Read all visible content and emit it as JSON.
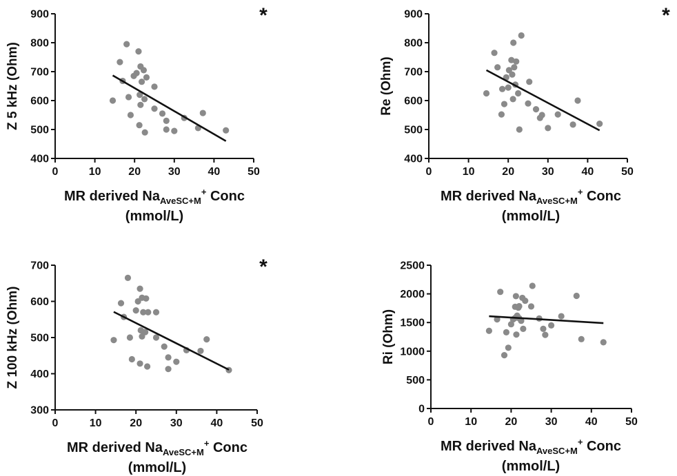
{
  "chart_data": [
    {
      "type": "scatter",
      "ylabel": "Z 5 kHz (Ohm)",
      "xlabel": {
        "prefix": "MR derived Na",
        "subscript": "AveSC+M",
        "superscript": "+",
        "suffix": " Conc",
        "line2": "(mmol/L)"
      },
      "xlim": [
        0,
        50
      ],
      "xticks": [
        0,
        10,
        20,
        30,
        40,
        50
      ],
      "ylim": [
        400,
        900
      ],
      "yticks": [
        400,
        500,
        600,
        700,
        800,
        900
      ],
      "significance": "*",
      "points": [
        [
          14.5,
          600
        ],
        [
          16.3,
          733
        ],
        [
          17,
          668
        ],
        [
          18,
          795
        ],
        [
          18.5,
          612
        ],
        [
          19,
          550
        ],
        [
          19.8,
          685
        ],
        [
          20.5,
          695
        ],
        [
          21,
          770
        ],
        [
          21.2,
          515
        ],
        [
          21.3,
          620
        ],
        [
          21.5,
          718
        ],
        [
          21.5,
          585
        ],
        [
          21.8,
          665
        ],
        [
          22.3,
          705
        ],
        [
          22.5,
          605
        ],
        [
          22.6,
          490
        ],
        [
          23,
          680
        ],
        [
          25,
          648
        ],
        [
          25,
          572
        ],
        [
          27,
          555
        ],
        [
          28,
          530
        ],
        [
          28,
          500
        ],
        [
          30,
          495
        ],
        [
          32.5,
          540
        ],
        [
          36,
          505
        ],
        [
          37.2,
          557
        ],
        [
          43,
          497
        ]
      ],
      "fit": {
        "x": [
          14.5,
          43
        ],
        "y": [
          687,
          460
        ]
      }
    },
    {
      "type": "scatter",
      "ylabel": "Re (Ohm)",
      "xlabel": {
        "prefix": "MR derived Na",
        "subscript": "AveSC+M",
        "superscript": "+",
        "suffix": " Conc",
        "line2": "(mmol/L)"
      },
      "xlim": [
        0,
        50
      ],
      "xticks": [
        0,
        10,
        20,
        30,
        40,
        50
      ],
      "ylim": [
        400,
        900
      ],
      "yticks": [
        400,
        500,
        600,
        700,
        800,
        900
      ],
      "significance": "*",
      "points": [
        [
          14.5,
          625
        ],
        [
          16.5,
          765
        ],
        [
          17.3,
          715
        ],
        [
          18.3,
          552
        ],
        [
          18.5,
          640
        ],
        [
          19,
          588
        ],
        [
          19.5,
          680
        ],
        [
          20,
          645
        ],
        [
          20.2,
          705
        ],
        [
          20.8,
          740
        ],
        [
          21,
          690
        ],
        [
          21.2,
          605
        ],
        [
          21.3,
          800
        ],
        [
          21.5,
          715
        ],
        [
          21.8,
          655
        ],
        [
          22,
          735
        ],
        [
          22.5,
          625
        ],
        [
          22.8,
          500
        ],
        [
          23.3,
          825
        ],
        [
          25,
          590
        ],
        [
          25.3,
          665
        ],
        [
          27,
          570
        ],
        [
          28,
          540
        ],
        [
          28.5,
          550
        ],
        [
          30,
          505
        ],
        [
          32.5,
          552
        ],
        [
          36.3,
          517
        ],
        [
          37.5,
          600
        ],
        [
          43,
          520
        ]
      ],
      "fit": {
        "x": [
          14.5,
          43
        ],
        "y": [
          705,
          497
        ]
      }
    },
    {
      "type": "scatter",
      "ylabel": "Z 100 kHz (Ohm)",
      "xlabel": {
        "prefix": "MR derived Na",
        "subscript": "AveSC+M",
        "superscript": "+",
        "suffix": " Conc",
        "line2": "(mmol/L)"
      },
      "xlim": [
        0,
        50
      ],
      "xticks": [
        0,
        10,
        20,
        30,
        40,
        50
      ],
      "ylim": [
        300,
        700
      ],
      "yticks": [
        300,
        400,
        500,
        600,
        700
      ],
      "significance": "*",
      "points": [
        [
          14.5,
          493
        ],
        [
          16.3,
          595
        ],
        [
          17,
          557
        ],
        [
          18,
          665
        ],
        [
          18.5,
          500
        ],
        [
          19,
          440
        ],
        [
          20,
          575
        ],
        [
          20.5,
          600
        ],
        [
          21,
          428
        ],
        [
          21,
          635
        ],
        [
          21.2,
          520
        ],
        [
          21.5,
          610
        ],
        [
          21.5,
          503
        ],
        [
          21.8,
          570
        ],
        [
          22,
          515
        ],
        [
          22.3,
          515
        ],
        [
          22.5,
          608
        ],
        [
          22.8,
          420
        ],
        [
          23,
          570
        ],
        [
          25,
          500
        ],
        [
          25,
          570
        ],
        [
          27,
          475
        ],
        [
          28,
          445
        ],
        [
          28,
          413
        ],
        [
          30,
          433
        ],
        [
          32.5,
          465
        ],
        [
          36,
          463
        ],
        [
          37.5,
          495
        ],
        [
          43,
          410
        ]
      ],
      "fit": {
        "x": [
          14.5,
          43
        ],
        "y": [
          571,
          411
        ]
      }
    },
    {
      "type": "scatter",
      "ylabel": "Ri (Ohm)",
      "xlabel": {
        "prefix": "MR derived Na",
        "subscript": "AveSC+M",
        "superscript": "+",
        "suffix": " Conc",
        "line2": "(mmol/L)"
      },
      "xlim": [
        0,
        50
      ],
      "xticks": [
        0,
        10,
        20,
        30,
        40,
        50
      ],
      "ylim": [
        0,
        2500
      ],
      "yticks": [
        0,
        500,
        1000,
        1500,
        2000,
        2500
      ],
      "significance": "",
      "points": [
        [
          14.5,
          1355
        ],
        [
          16.5,
          1555
        ],
        [
          17.3,
          2035
        ],
        [
          18.3,
          930
        ],
        [
          18.8,
          1330
        ],
        [
          19.3,
          1060
        ],
        [
          20,
          1470
        ],
        [
          20.5,
          1555
        ],
        [
          21,
          1775
        ],
        [
          21,
          1580
        ],
        [
          21.2,
          1960
        ],
        [
          21.3,
          1290
        ],
        [
          21.5,
          1620
        ],
        [
          21.8,
          1760
        ],
        [
          22,
          1785
        ],
        [
          22,
          1575
        ],
        [
          22.5,
          1530
        ],
        [
          22.8,
          1930
        ],
        [
          23,
          1390
        ],
        [
          23.5,
          1880
        ],
        [
          25,
          1780
        ],
        [
          25.3,
          2140
        ],
        [
          27,
          1570
        ],
        [
          28,
          1390
        ],
        [
          28.5,
          1285
        ],
        [
          30,
          1450
        ],
        [
          32.5,
          1610
        ],
        [
          36.3,
          1965
        ],
        [
          37.5,
          1210
        ],
        [
          43,
          1155
        ]
      ],
      "fit": {
        "x": [
          14.5,
          43
        ],
        "y": [
          1610,
          1490
        ]
      }
    }
  ]
}
